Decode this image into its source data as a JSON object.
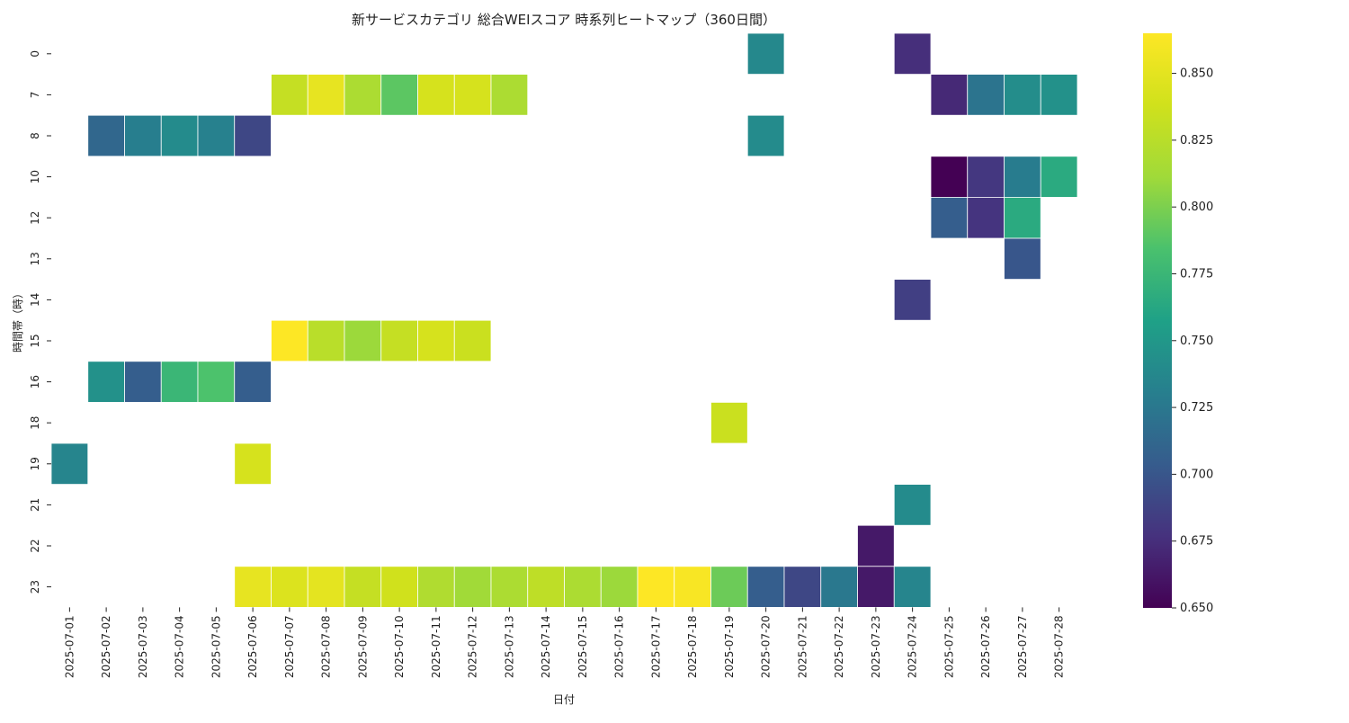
{
  "chart_data": {
    "type": "heatmap",
    "title": "新サービスカテゴリ 総合WEIスコア 時系列ヒートマップ（360日間）",
    "xlabel": "日付",
    "ylabel": "時間帯（時）",
    "x_categories": [
      "2025-07-01",
      "2025-07-02",
      "2025-07-03",
      "2025-07-04",
      "2025-07-05",
      "2025-07-06",
      "2025-07-07",
      "2025-07-08",
      "2025-07-09",
      "2025-07-10",
      "2025-07-11",
      "2025-07-12",
      "2025-07-13",
      "2025-07-14",
      "2025-07-15",
      "2025-07-16",
      "2025-07-17",
      "2025-07-18",
      "2025-07-19",
      "2025-07-20",
      "2025-07-21",
      "2025-07-22",
      "2025-07-23",
      "2025-07-24",
      "2025-07-25",
      "2025-07-26",
      "2025-07-27",
      "2025-07-28"
    ],
    "y_categories": [
      "0",
      "7",
      "8",
      "10",
      "12",
      "13",
      "14",
      "15",
      "16",
      "18",
      "19",
      "21",
      "22",
      "23"
    ],
    "colormap": "viridis",
    "color_range": [
      0.65,
      0.865
    ],
    "colorbar_ticks": [
      "0.650",
      "0.675",
      "0.700",
      "0.725",
      "0.750",
      "0.775",
      "0.800",
      "0.825",
      "0.850"
    ],
    "cells": [
      {
        "x": "2025-07-20",
        "y": "0",
        "value": 0.738
      },
      {
        "x": "2025-07-24",
        "y": "0",
        "value": 0.675
      },
      {
        "x": "2025-07-07",
        "y": "7",
        "value": 0.832
      },
      {
        "x": "2025-07-08",
        "y": "7",
        "value": 0.852
      },
      {
        "x": "2025-07-09",
        "y": "7",
        "value": 0.818
      },
      {
        "x": "2025-07-10",
        "y": "7",
        "value": 0.79
      },
      {
        "x": "2025-07-11",
        "y": "7",
        "value": 0.842
      },
      {
        "x": "2025-07-12",
        "y": "7",
        "value": 0.842
      },
      {
        "x": "2025-07-13",
        "y": "7",
        "value": 0.818
      },
      {
        "x": "2025-07-25",
        "y": "7",
        "value": 0.672
      },
      {
        "x": "2025-07-26",
        "y": "7",
        "value": 0.722
      },
      {
        "x": "2025-07-27",
        "y": "7",
        "value": 0.742
      },
      {
        "x": "2025-07-28",
        "y": "7",
        "value": 0.745
      },
      {
        "x": "2025-07-02",
        "y": "8",
        "value": 0.712
      },
      {
        "x": "2025-07-03",
        "y": "8",
        "value": 0.73
      },
      {
        "x": "2025-07-04",
        "y": "8",
        "value": 0.74
      },
      {
        "x": "2025-07-05",
        "y": "8",
        "value": 0.732
      },
      {
        "x": "2025-07-06",
        "y": "8",
        "value": 0.69
      },
      {
        "x": "2025-07-20",
        "y": "8",
        "value": 0.74
      },
      {
        "x": "2025-07-25",
        "y": "10",
        "value": 0.65
      },
      {
        "x": "2025-07-26",
        "y": "10",
        "value": 0.68
      },
      {
        "x": "2025-07-27",
        "y": "10",
        "value": 0.728
      },
      {
        "x": "2025-07-28",
        "y": "10",
        "value": 0.765
      },
      {
        "x": "2025-07-25",
        "y": "12",
        "value": 0.705
      },
      {
        "x": "2025-07-26",
        "y": "12",
        "value": 0.678
      },
      {
        "x": "2025-07-27",
        "y": "12",
        "value": 0.765
      },
      {
        "x": "2025-07-27",
        "y": "13",
        "value": 0.7
      },
      {
        "x": "2025-07-24",
        "y": "14",
        "value": 0.685
      },
      {
        "x": "2025-07-07",
        "y": "15",
        "value": 0.865
      },
      {
        "x": "2025-07-08",
        "y": "15",
        "value": 0.825
      },
      {
        "x": "2025-07-09",
        "y": "15",
        "value": 0.81
      },
      {
        "x": "2025-07-10",
        "y": "15",
        "value": 0.832
      },
      {
        "x": "2025-07-11",
        "y": "15",
        "value": 0.842
      },
      {
        "x": "2025-07-12",
        "y": "15",
        "value": 0.835
      },
      {
        "x": "2025-07-02",
        "y": "16",
        "value": 0.745
      },
      {
        "x": "2025-07-03",
        "y": "16",
        "value": 0.705
      },
      {
        "x": "2025-07-04",
        "y": "16",
        "value": 0.775
      },
      {
        "x": "2025-07-05",
        "y": "16",
        "value": 0.785
      },
      {
        "x": "2025-07-06",
        "y": "16",
        "value": 0.705
      },
      {
        "x": "2025-07-19",
        "y": "18",
        "value": 0.835
      },
      {
        "x": "2025-07-01",
        "y": "19",
        "value": 0.735
      },
      {
        "x": "2025-07-06",
        "y": "19",
        "value": 0.842
      },
      {
        "x": "2025-07-24",
        "y": "21",
        "value": 0.74
      },
      {
        "x": "2025-07-23",
        "y": "22",
        "value": 0.663
      },
      {
        "x": "2025-07-06",
        "y": "23",
        "value": 0.852
      },
      {
        "x": "2025-07-07",
        "y": "23",
        "value": 0.845
      },
      {
        "x": "2025-07-08",
        "y": "23",
        "value": 0.85
      },
      {
        "x": "2025-07-09",
        "y": "23",
        "value": 0.832
      },
      {
        "x": "2025-07-10",
        "y": "23",
        "value": 0.838
      },
      {
        "x": "2025-07-11",
        "y": "23",
        "value": 0.82
      },
      {
        "x": "2025-07-12",
        "y": "23",
        "value": 0.812
      },
      {
        "x": "2025-07-13",
        "y": "23",
        "value": 0.818
      },
      {
        "x": "2025-07-14",
        "y": "23",
        "value": 0.828
      },
      {
        "x": "2025-07-15",
        "y": "23",
        "value": 0.818
      },
      {
        "x": "2025-07-16",
        "y": "23",
        "value": 0.81
      },
      {
        "x": "2025-07-17",
        "y": "23",
        "value": 0.865
      },
      {
        "x": "2025-07-18",
        "y": "23",
        "value": 0.862
      },
      {
        "x": "2025-07-19",
        "y": "23",
        "value": 0.795
      },
      {
        "x": "2025-07-20",
        "y": "23",
        "value": 0.705
      },
      {
        "x": "2025-07-21",
        "y": "23",
        "value": 0.69
      },
      {
        "x": "2025-07-22",
        "y": "23",
        "value": 0.725
      },
      {
        "x": "2025-07-23",
        "y": "23",
        "value": 0.663
      },
      {
        "x": "2025-07-24",
        "y": "23",
        "value": 0.735
      }
    ]
  }
}
